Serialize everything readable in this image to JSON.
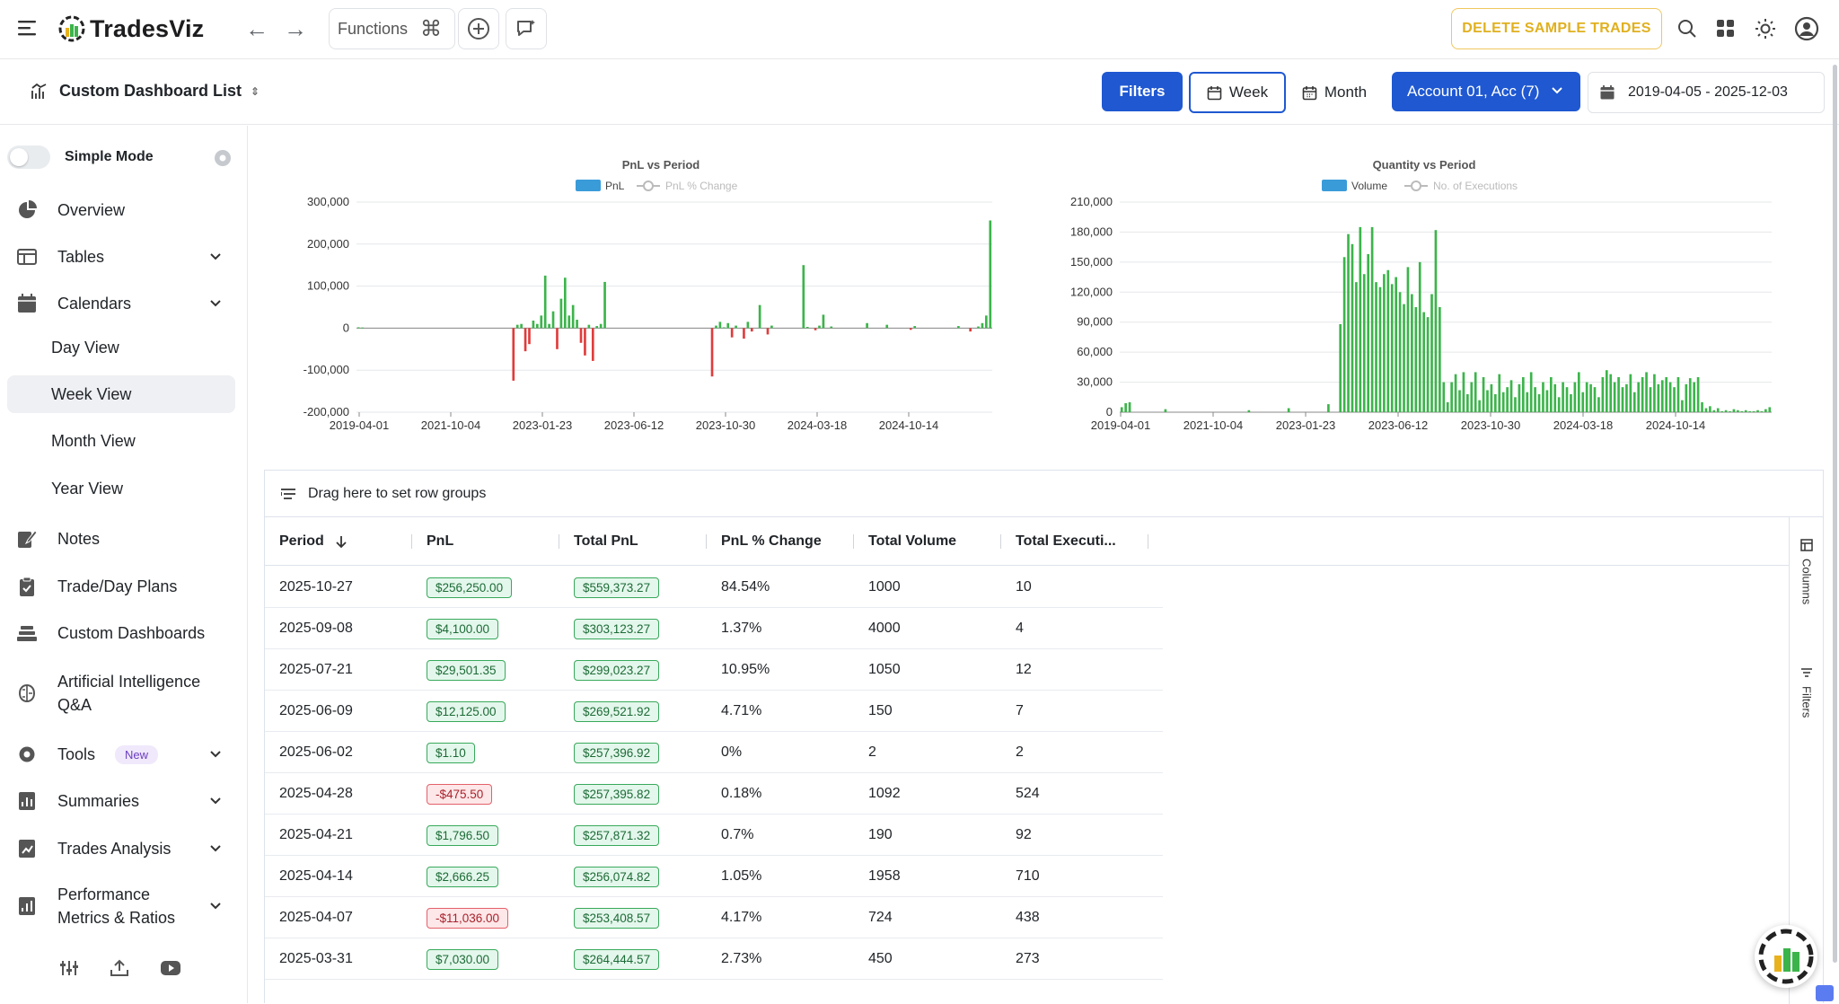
{
  "app": {
    "name": "TradesViz"
  },
  "topbar": {
    "functions_label": "Functions",
    "delete_label": "DELETE SAMPLE TRADES",
    "icons": [
      "menu-icon",
      "back-arrow-icon",
      "forward-arrow-icon",
      "command-icon",
      "add-circle-icon",
      "ai-chat-icon",
      "search-icon",
      "apps-grid-icon",
      "theme-sun-icon",
      "account-icon"
    ]
  },
  "subbar": {
    "dashboard_list_label": "Custom Dashboard List",
    "filters_label": "Filters",
    "week_label": "Week",
    "month_label": "Month",
    "account_label": "Account 01, Acc (7)",
    "date_range": "2019-04-05 - 2025-12-03"
  },
  "sidebar": {
    "simple_mode_label": "Simple Mode",
    "items": [
      {
        "label": "Overview",
        "icon": "pie-chart-icon"
      },
      {
        "label": "Tables",
        "icon": "table-icon"
      },
      {
        "label": "Calendars",
        "icon": "calendar-icon"
      },
      {
        "label": "Notes",
        "icon": "notes-icon"
      },
      {
        "label": "Trade/Day Plans",
        "icon": "clipboard-icon"
      },
      {
        "label": "Custom Dashboards",
        "icon": "dashboard-stack-icon"
      },
      {
        "label": "Artificial Intelligence",
        "label2": "Q&A",
        "icon": "ai-brain-icon"
      },
      {
        "label": "Tools",
        "icon": "gear-icon",
        "badge": "New"
      },
      {
        "label": "Summaries",
        "icon": "report-icon"
      },
      {
        "label": "Trades Analysis",
        "icon": "analysis-icon"
      },
      {
        "label": "Performance",
        "label2": "Metrics & Ratios",
        "icon": "metrics-icon"
      }
    ],
    "calendar_subitems": [
      "Day View",
      "Week View",
      "Month View",
      "Year View"
    ]
  },
  "charts": {
    "pnl": {
      "title": "PnL vs Period",
      "legend": [
        "PnL",
        "PnL % Change"
      ],
      "y_ticks": [
        "300,000",
        "200,000",
        "100,000",
        "0",
        "-100,000",
        "-200,000"
      ],
      "x_ticks": [
        "2019-04-01",
        "2021-10-04",
        "2023-01-23",
        "2023-06-12",
        "2023-10-30",
        "2024-03-18",
        "2024-10-14"
      ]
    },
    "qty": {
      "title": "Quantity vs Period",
      "legend": [
        "Volume",
        "No. of Executions"
      ],
      "y_ticks": [
        "210,000",
        "180,000",
        "150,000",
        "120,000",
        "90,000",
        "60,000",
        "30,000",
        "0"
      ],
      "x_ticks": [
        "2019-04-01",
        "2021-10-04",
        "2023-01-23",
        "2023-06-12",
        "2023-10-30",
        "2024-03-18",
        "2024-10-14"
      ]
    }
  },
  "chart_data": [
    {
      "type": "bar",
      "title": "PnL vs Period",
      "series": [
        {
          "name": "PnL"
        },
        {
          "name": "PnL % Change"
        }
      ],
      "ylim": [
        -200000,
        300000
      ],
      "colors": {
        "positive": "#3cb44b",
        "negative": "#e03c3c"
      },
      "values": [
        2000,
        1500,
        0,
        0,
        0,
        0,
        0,
        0,
        0,
        0,
        0,
        0,
        0,
        0,
        0,
        0,
        0,
        0,
        0,
        0,
        0,
        0,
        0,
        0,
        0,
        0,
        0,
        0,
        0,
        0,
        0,
        0,
        0,
        0,
        0,
        0,
        0,
        0,
        0,
        -125000,
        8000,
        10000,
        -55000,
        -38000,
        18000,
        10000,
        30000,
        125000,
        10000,
        40000,
        -50000,
        70000,
        120000,
        30000,
        55000,
        20000,
        -35000,
        -65000,
        8000,
        -78000,
        5000,
        10000,
        110000,
        0,
        0,
        0,
        0,
        0,
        0,
        0,
        0,
        0,
        0,
        0,
        0,
        0,
        0,
        0,
        0,
        0,
        0,
        0,
        0,
        0,
        0,
        0,
        0,
        0,
        0,
        -115000,
        6000,
        15000,
        2000,
        12000,
        -22000,
        6000,
        0,
        -25000,
        15000,
        -8000,
        0,
        55000,
        0,
        -15000,
        6000,
        0,
        0,
        0,
        0,
        0,
        0,
        0,
        150000,
        3000,
        0,
        -5000,
        6000,
        32000,
        0,
        4000,
        0,
        0,
        0,
        0,
        0,
        0,
        0,
        0,
        12000,
        0,
        0,
        0,
        0,
        8000,
        0,
        0,
        0,
        0,
        0,
        -4000,
        5000,
        0,
        0,
        0,
        0,
        0,
        0,
        0,
        0,
        0,
        0,
        5000,
        0,
        0,
        -8000,
        0,
        4000,
        12000,
        30000,
        256250
      ],
      "x_ticks": [
        "2019-04-01",
        "2021-10-04",
        "2023-01-23",
        "2023-06-12",
        "2023-10-30",
        "2024-03-18",
        "2024-10-14"
      ]
    },
    {
      "type": "bar",
      "title": "Quantity vs Period",
      "series": [
        {
          "name": "Volume"
        },
        {
          "name": "No. of Executions"
        }
      ],
      "ylim": [
        0,
        210000
      ],
      "colors": {
        "bar": "#3cb44b"
      },
      "values": [
        5000,
        9000,
        10000,
        0,
        0,
        0,
        0,
        0,
        0,
        0,
        0,
        3000,
        0,
        0,
        0,
        0,
        0,
        0,
        0,
        0,
        0,
        0,
        0,
        0,
        0,
        0,
        0,
        0,
        0,
        0,
        0,
        0,
        2000,
        0,
        0,
        0,
        0,
        0,
        0,
        0,
        0,
        0,
        4000,
        0,
        0,
        0,
        0,
        0,
        0,
        0,
        0,
        0,
        8000,
        0,
        0,
        88000,
        155000,
        178000,
        168000,
        130000,
        185000,
        138000,
        158000,
        185000,
        130000,
        125000,
        138000,
        142000,
        128000,
        135000,
        120000,
        108000,
        145000,
        118000,
        105000,
        150000,
        100000,
        95000,
        118000,
        182000,
        105000,
        30000,
        10000,
        30000,
        38000,
        22000,
        40000,
        18000,
        30000,
        40000,
        12000,
        35000,
        22000,
        28000,
        18000,
        38000,
        20000,
        25000,
        32000,
        15000,
        28000,
        35000,
        20000,
        40000,
        25000,
        18000,
        30000,
        22000,
        35000,
        28000,
        15000,
        30000,
        25000,
        18000,
        30000,
        40000,
        20000,
        30000,
        28000,
        25000,
        15000,
        35000,
        42000,
        38000,
        30000,
        35000,
        25000,
        28000,
        38000,
        20000,
        30000,
        35000,
        40000,
        25000,
        38000,
        28000,
        32000,
        35000,
        30000,
        25000,
        35000,
        12000,
        28000,
        34000,
        30000,
        35000,
        10000,
        4000,
        6000,
        2000,
        4000,
        1000,
        2000,
        1000,
        3000,
        2000,
        1000,
        2000,
        1000,
        1000,
        2000,
        1000,
        3000,
        5000
      ],
      "x_ticks": [
        "2019-04-01",
        "2021-10-04",
        "2023-01-23",
        "2023-06-12",
        "2023-10-30",
        "2024-03-18",
        "2024-10-14"
      ]
    }
  ],
  "grid": {
    "row_group_hint": "Drag here to set row groups",
    "columns": [
      "Period",
      "PnL",
      "Total PnL",
      "PnL % Change",
      "Total Volume",
      "Total Executi..."
    ],
    "side_tabs": [
      "Columns",
      "Filters"
    ],
    "rows": [
      {
        "period": "2025-10-27",
        "pnl": "$256,250.00",
        "pnl_sign": "pos",
        "total_pnl": "$559,373.27",
        "pct": "84.54%",
        "volume": "1000",
        "executions": "10"
      },
      {
        "period": "2025-09-08",
        "pnl": "$4,100.00",
        "pnl_sign": "pos",
        "total_pnl": "$303,123.27",
        "pct": "1.37%",
        "volume": "4000",
        "executions": "4"
      },
      {
        "period": "2025-07-21",
        "pnl": "$29,501.35",
        "pnl_sign": "pos",
        "total_pnl": "$299,023.27",
        "pct": "10.95%",
        "volume": "1050",
        "executions": "12"
      },
      {
        "period": "2025-06-09",
        "pnl": "$12,125.00",
        "pnl_sign": "pos",
        "total_pnl": "$269,521.92",
        "pct": "4.71%",
        "volume": "150",
        "executions": "7"
      },
      {
        "period": "2025-06-02",
        "pnl": "$1.10",
        "pnl_sign": "pos",
        "total_pnl": "$257,396.92",
        "pct": "0%",
        "volume": "2",
        "executions": "2"
      },
      {
        "period": "2025-04-28",
        "pnl": "-$475.50",
        "pnl_sign": "neg",
        "total_pnl": "$257,395.82",
        "pct": "0.18%",
        "volume": "1092",
        "executions": "524"
      },
      {
        "period": "2025-04-21",
        "pnl": "$1,796.50",
        "pnl_sign": "pos",
        "total_pnl": "$257,871.32",
        "pct": "0.7%",
        "volume": "190",
        "executions": "92"
      },
      {
        "period": "2025-04-14",
        "pnl": "$2,666.25",
        "pnl_sign": "pos",
        "total_pnl": "$256,074.82",
        "pct": "1.05%",
        "volume": "1958",
        "executions": "710"
      },
      {
        "period": "2025-04-07",
        "pnl": "-$11,036.00",
        "pnl_sign": "neg",
        "total_pnl": "$253,408.57",
        "pct": "4.17%",
        "volume": "724",
        "executions": "438"
      },
      {
        "period": "2025-03-31",
        "pnl": "$7,030.00",
        "pnl_sign": "pos",
        "total_pnl": "$264,444.57",
        "pct": "2.73%",
        "volume": "450",
        "executions": "273"
      }
    ]
  },
  "colors": {
    "primary": "#1f58d1",
    "warning": "#e0b020",
    "legend_bar": "#3a9bd9",
    "bar_green": "#3cb44b",
    "bar_red": "#e03c3c"
  }
}
